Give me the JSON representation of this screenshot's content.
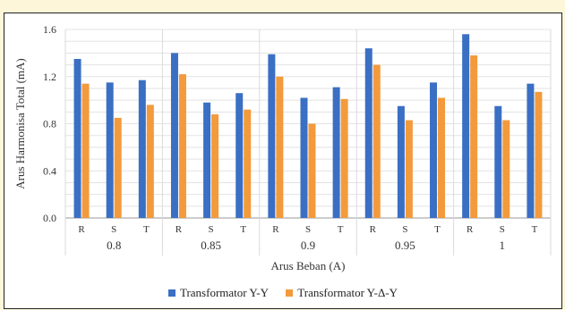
{
  "chart_data": {
    "type": "bar",
    "ylabel": "Arus Harmonisa Total (mA)",
    "xlabel": "Arus Beban (A)",
    "ylim": [
      0,
      1.6
    ],
    "yticks": [
      "0.0",
      "0.4",
      "0.8",
      "1.2",
      "1.6"
    ],
    "groups": [
      "0.8",
      "0.85",
      "0.9",
      "0.95",
      "1"
    ],
    "phases": [
      "R",
      "S",
      "T"
    ],
    "series": [
      {
        "name": "Transformator Y-Y",
        "color": "#3a6fc4",
        "values": [
          [
            1.35,
            1.15,
            1.17
          ],
          [
            1.4,
            0.98,
            1.06
          ],
          [
            1.39,
            1.02,
            1.11
          ],
          [
            1.44,
            0.95,
            1.15
          ],
          [
            1.56,
            0.95,
            1.14
          ]
        ]
      },
      {
        "name": "Transformator Y-Δ-Y",
        "color": "#f39a3c",
        "values": [
          [
            1.14,
            0.85,
            0.96
          ],
          [
            1.22,
            0.88,
            0.92
          ],
          [
            1.2,
            0.8,
            1.01
          ],
          [
            1.3,
            0.83,
            1.02
          ],
          [
            1.38,
            0.83,
            1.07
          ]
        ]
      }
    ],
    "grid": true,
    "legend_position": "bottom"
  }
}
